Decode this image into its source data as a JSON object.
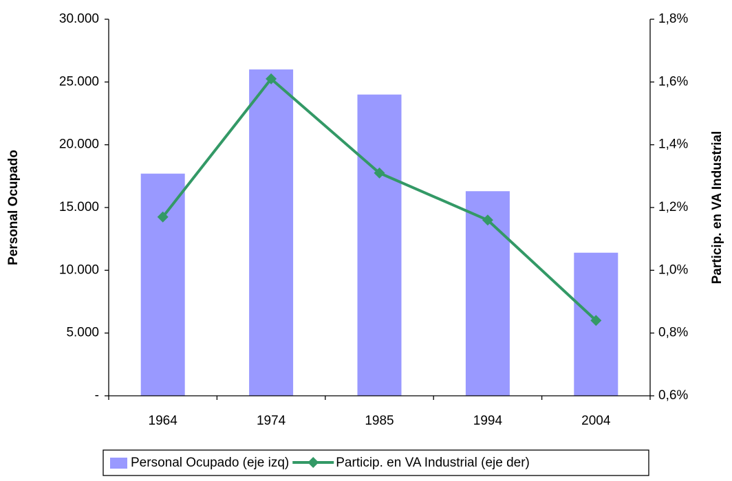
{
  "chart_data": {
    "type": "bar+line",
    "categories": [
      "1964",
      "1974",
      "1985",
      "1994",
      "2004"
    ],
    "series": [
      {
        "name": "Personal Ocupado (eje izq)",
        "type": "bar",
        "color": "#9999ff",
        "values": [
          17700,
          26000,
          24000,
          16300,
          11400
        ]
      },
      {
        "name": "Particip. en VA Industrial (eje der)",
        "type": "line",
        "axis": "y2",
        "color": "#339966",
        "values": [
          1.17,
          1.61,
          1.31,
          1.16,
          0.84
        ]
      }
    ],
    "ylabel": "Personal Ocupado",
    "y2label": "Particip. en VA Industrial",
    "ylim": [
      0,
      30000
    ],
    "yticks": [
      {
        "value": 0,
        "label": "-"
      },
      {
        "value": 5000,
        "label": "5.000"
      },
      {
        "value": 10000,
        "label": "10.000"
      },
      {
        "value": 15000,
        "label": "15.000"
      },
      {
        "value": 20000,
        "label": "20.000"
      },
      {
        "value": 25000,
        "label": "25.000"
      },
      {
        "value": 30000,
        "label": "30.000"
      }
    ],
    "y2lim": [
      0.6,
      1.8
    ],
    "y2ticks": [
      {
        "value": 0.6,
        "label": "0,6%"
      },
      {
        "value": 0.8,
        "label": "0,8%"
      },
      {
        "value": 1.0,
        "label": "1,0%"
      },
      {
        "value": 1.2,
        "label": "1,2%"
      },
      {
        "value": 1.4,
        "label": "1,4%"
      },
      {
        "value": 1.6,
        "label": "1,6%"
      },
      {
        "value": 1.8,
        "label": "1,8%"
      }
    ],
    "grid": false,
    "legend": "bottom"
  }
}
